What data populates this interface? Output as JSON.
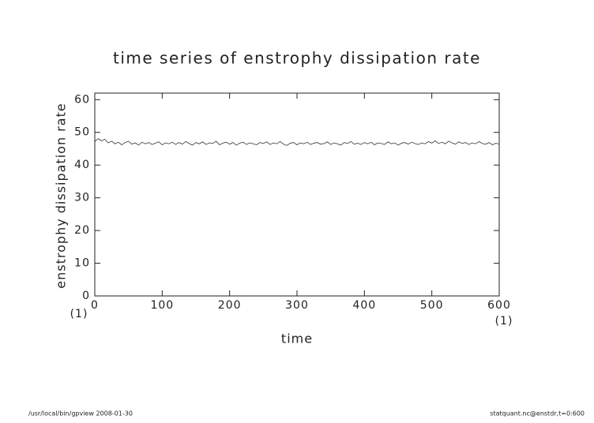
{
  "chart_data": {
    "type": "line",
    "title": "time series of enstrophy dissipation rate",
    "x_label": "time",
    "y_label": "enstrophy dissipation rate",
    "x_start_note": "(1)",
    "x_end_note": "(1)",
    "footer_left": "/usr/local/bin/gpview   2008-01-30",
    "footer_right": "statquant.nc@enstdr,t=0:600",
    "x": [
      0,
      5,
      10,
      15,
      20,
      25,
      30,
      35,
      40,
      45,
      50,
      55,
      60,
      65,
      70,
      75,
      80,
      85,
      90,
      95,
      100,
      105,
      110,
      115,
      120,
      125,
      130,
      135,
      140,
      145,
      150,
      155,
      160,
      165,
      170,
      175,
      180,
      185,
      190,
      195,
      200,
      205,
      210,
      215,
      220,
      225,
      230,
      235,
      240,
      245,
      250,
      255,
      260,
      265,
      270,
      275,
      280,
      285,
      290,
      295,
      300,
      305,
      310,
      315,
      320,
      325,
      330,
      335,
      340,
      345,
      350,
      355,
      360,
      365,
      370,
      375,
      380,
      385,
      390,
      395,
      400,
      405,
      410,
      415,
      420,
      425,
      430,
      435,
      440,
      445,
      450,
      455,
      460,
      465,
      470,
      475,
      480,
      485,
      490,
      495,
      500,
      505,
      510,
      515,
      520,
      525,
      530,
      535,
      540,
      545,
      550,
      555,
      560,
      565,
      570,
      575,
      580,
      585,
      590,
      595,
      600
    ],
    "series": [
      {
        "color": "#333333",
        "values": [
          47.2,
          48.1,
          47.4,
          47.9,
          46.8,
          47.3,
          46.5,
          47.0,
          46.2,
          46.9,
          47.3,
          46.4,
          46.8,
          46.1,
          47.0,
          46.5,
          46.9,
          46.3,
          46.7,
          47.1,
          46.2,
          46.8,
          46.5,
          47.0,
          46.3,
          46.9,
          46.4,
          47.2,
          46.6,
          46.1,
          46.9,
          46.5,
          47.1,
          46.3,
          46.8,
          46.6,
          47.3,
          46.2,
          46.7,
          47.0,
          46.4,
          46.9,
          46.1,
          46.7,
          47.0,
          46.3,
          46.8,
          46.5,
          46.2,
          46.9,
          46.6,
          47.1,
          46.3,
          46.8,
          46.5,
          47.2,
          46.4,
          46.0,
          46.7,
          46.9,
          46.2,
          46.8,
          46.5,
          47.0,
          46.3,
          46.7,
          46.9,
          46.4,
          46.6,
          47.1,
          46.3,
          46.8,
          46.5,
          46.1,
          46.9,
          46.6,
          47.2,
          46.4,
          46.7,
          46.3,
          46.9,
          46.5,
          47.0,
          46.2,
          46.8,
          46.6,
          46.3,
          47.1,
          46.5,
          46.8,
          46.1,
          46.7,
          46.9,
          46.4,
          47.0,
          46.6,
          46.3,
          46.8,
          46.5,
          47.2,
          46.7,
          47.4,
          46.6,
          47.0,
          46.5,
          47.3,
          46.8,
          46.4,
          47.1,
          46.6,
          46.9,
          46.3,
          46.8,
          46.5,
          47.2,
          46.6,
          46.4,
          46.9,
          46.2,
          46.7,
          46.4
        ]
      }
    ],
    "xlim": [
      0,
      600
    ],
    "ylim": [
      0,
      62
    ],
    "xticks": [
      0,
      100,
      200,
      300,
      400,
      500,
      600
    ],
    "yticks": [
      0,
      10,
      20,
      30,
      40,
      50,
      60
    ]
  }
}
